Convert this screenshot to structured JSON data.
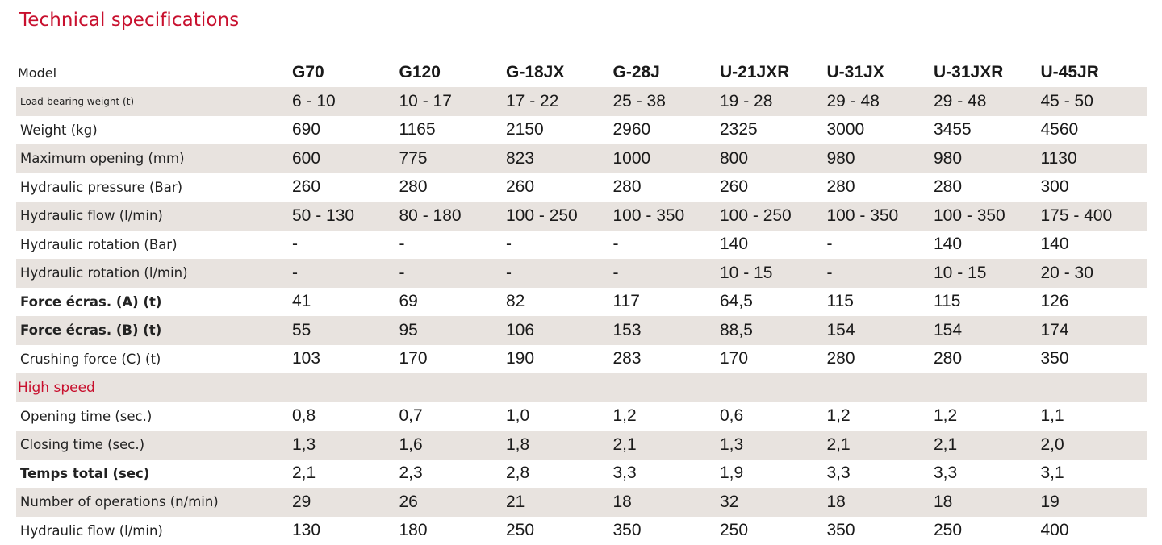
{
  "title": "Technical specifications",
  "models_label": "Model",
  "models": [
    "G70",
    "G120",
    "G-18JX",
    "G-28J",
    "U-21JXR",
    "U-31JX",
    "U-31JXR",
    "U-45JR"
  ],
  "rows": [
    {
      "label": "Load-bearing weight (t)",
      "values": [
        "6 - 10",
        "10 - 17",
        "17 - 22",
        "25 - 38",
        "19 - 28",
        "29 - 48",
        "29 - 48",
        "45 - 50"
      ]
    },
    {
      "label": "Weight (kg)",
      "values": [
        "690",
        "1165",
        "2150",
        "2960",
        "2325",
        "3000",
        "3455",
        "4560"
      ]
    },
    {
      "label": "Maximum opening (mm)",
      "values": [
        "600",
        "775",
        "823",
        "1000",
        "800",
        "980",
        "980",
        "1130"
      ]
    },
    {
      "label": "Hydraulic pressure (Bar)",
      "values": [
        "260",
        "280",
        "260",
        "280",
        "260",
        "280",
        "280",
        "300"
      ]
    },
    {
      "label": "Hydraulic flow (l/min)",
      "values": [
        "50 - 130",
        "80 - 180",
        "100 - 250",
        "100 - 350",
        "100 - 250",
        "100 - 350",
        "100 - 350",
        "175 - 400"
      ]
    },
    {
      "label": "Hydraulic rotation (Bar)",
      "values": [
        "-",
        "-",
        "-",
        "-",
        "140",
        "-",
        "140",
        "140"
      ]
    },
    {
      "label": "Hydraulic rotation (l/min)",
      "values": [
        "-",
        "-",
        "-",
        "-",
        "10 - 15",
        "-",
        "10 - 15",
        "20 - 30"
      ]
    },
    {
      "label": "Force écras. (A) (t)",
      "values": [
        "41",
        "69",
        "82",
        "117",
        "64,5",
        "115",
        "115",
        "126"
      ]
    },
    {
      "label": "Force écras. (B) (t)",
      "values": [
        "55",
        "95",
        "106",
        "153",
        "88,5",
        "154",
        "154",
        "174"
      ]
    },
    {
      "label": "Crushing force (C) (t)",
      "values": [
        "103",
        "170",
        "190",
        "283",
        "170",
        "280",
        "280",
        "350"
      ]
    },
    {
      "label": "High speed",
      "values": [
        "",
        "",
        "",
        "",
        "",
        "",
        "",
        ""
      ]
    },
    {
      "label": "Opening time (sec.)",
      "values": [
        "0,8",
        "0,7",
        "1,0",
        "1,2",
        "0,6",
        "1,2",
        "1,2",
        "1,1"
      ]
    },
    {
      "label": "Closing time (sec.)",
      "values": [
        "1,3",
        "1,6",
        "1,8",
        "2,1",
        "1,3",
        "2,1",
        "2,1",
        "2,0"
      ]
    },
    {
      "label": "Temps total (sec)",
      "values": [
        "2,1",
        "2,3",
        "2,8",
        "3,3",
        "1,9",
        "3,3",
        "3,3",
        "3,1"
      ]
    },
    {
      "label": "Number of operations (n/min)",
      "values": [
        "29",
        "26",
        "21",
        "18",
        "32",
        "18",
        "18",
        "19"
      ]
    },
    {
      "label": "Hydraulic flow (l/min)",
      "values": [
        "130",
        "180",
        "250",
        "350",
        "250",
        "350",
        "250",
        "400"
      ]
    }
  ],
  "colors": {
    "title": "#c8102e",
    "shade": "#e8e3df",
    "text": "#1a1a1a"
  }
}
